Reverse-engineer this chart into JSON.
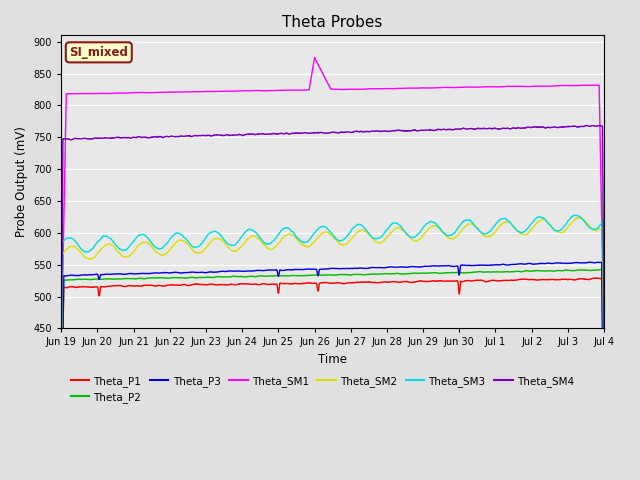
{
  "title": "Theta Probes",
  "ylabel": "Probe Output (mV)",
  "xlabel": "Time",
  "ylim": [
    450,
    910
  ],
  "yticks": [
    450,
    500,
    550,
    600,
    650,
    700,
    750,
    800,
    850,
    900
  ],
  "background_color": "#e0e0e0",
  "plot_bg_color": "#e8e8e8",
  "annotation_text": "SI_mixed",
  "annotation_bg": "#ffffcc",
  "annotation_border": "#8b1a1a",
  "annotation_text_color": "#8b1a1a",
  "series_colors": {
    "Theta_P1": "#ff0000",
    "Theta_P2": "#00bb00",
    "Theta_P3": "#0000dd",
    "Theta_SM1": "#ff00ff",
    "Theta_SM2": "#dddd00",
    "Theta_SM3": "#00dddd",
    "Theta_SM4": "#7700bb"
  },
  "x_tick_labels": [
    "Jun 19",
    "Jun 20",
    "Jun 21",
    "Jun 22",
    "Jun 23",
    "Jun 24",
    "Jun 25",
    "Jun 26",
    "Jun 27",
    "Jun 28",
    "Jun 29",
    "Jun 30",
    "Jul 1",
    "Jul 2",
    "Jul 3",
    "Jul 4"
  ],
  "n_points": 3200
}
